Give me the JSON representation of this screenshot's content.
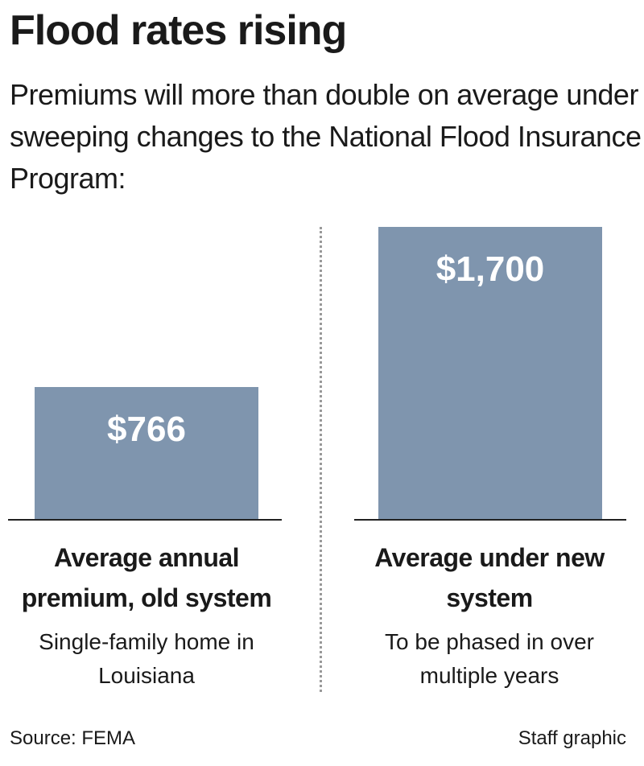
{
  "chart_data": {
    "type": "bar",
    "title": "Flood rates rising",
    "subtitle": "Premiums will more than double on average under sweeping changes to the National Flood Insurance Program:",
    "categories": [
      "Average annual premium, old system",
      "Average under new system"
    ],
    "category_notes": [
      "Single-family home in Louisiana",
      "To be phased in over multiple years"
    ],
    "values": [
      766,
      1700
    ],
    "value_labels": [
      "$766",
      "$1,700"
    ],
    "color": "#7f95ae",
    "source": "Source: FEMA",
    "credit": "Staff graphic"
  }
}
